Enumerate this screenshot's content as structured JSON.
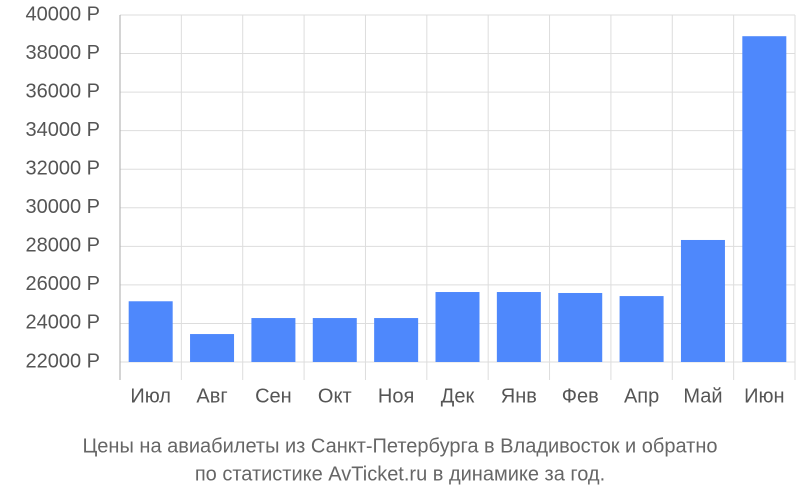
{
  "chart_data": {
    "type": "bar",
    "categories": [
      "Июл",
      "Авг",
      "Сен",
      "Окт",
      "Ноя",
      "Дек",
      "Янв",
      "Фев",
      "Апр",
      "Май",
      "Июн"
    ],
    "values": [
      25150,
      23450,
      24280,
      24280,
      24280,
      25630,
      25630,
      25580,
      25420,
      28330,
      38900
    ],
    "color": "#4e88fc",
    "ylim": [
      22000,
      40000
    ],
    "yticks": [
      {
        "value": 22000,
        "label": "22000 Р"
      },
      {
        "value": 24000,
        "label": "24000 Р"
      },
      {
        "value": 26000,
        "label": "26000 Р"
      },
      {
        "value": 28000,
        "label": "28000 Р"
      },
      {
        "value": 30000,
        "label": "30000 Р"
      },
      {
        "value": 32000,
        "label": "32000 Р"
      },
      {
        "value": 34000,
        "label": "34000 Р"
      },
      {
        "value": 36000,
        "label": "36000 Р"
      },
      {
        "value": 38000,
        "label": "38000 Р"
      },
      {
        "value": 40000,
        "label": "40000 Р"
      }
    ],
    "grid": true,
    "caption": [
      "Цены на авиабилеты из Санкт-Петербурга в Владивосток и обратно",
      "по статистике AvTicket.ru в динамике за год."
    ]
  }
}
